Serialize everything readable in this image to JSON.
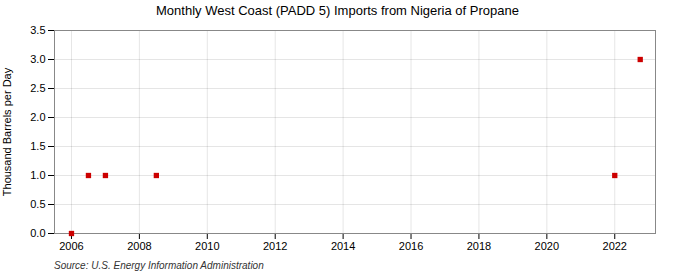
{
  "chart_data": {
    "type": "scatter",
    "title": "Monthly West Coast (PADD 5) Imports from Nigeria of Propane",
    "ylabel": "Thousand Barrels per Day",
    "source": "Source: U.S. Energy Information Administration",
    "x": [
      2006.0,
      2006.5,
      2007.0,
      2008.5,
      2022.0,
      2022.75
    ],
    "values": [
      0.0,
      1.0,
      1.0,
      1.0,
      1.0,
      3.0
    ],
    "color": "#cc0000",
    "marker": "square",
    "xlim": [
      2005.5,
      2023.2
    ],
    "ylim": [
      0.0,
      3.5
    ],
    "xticks": [
      2006,
      2008,
      2010,
      2012,
      2014,
      2016,
      2018,
      2020,
      2022
    ],
    "yticks": [
      {
        "value": 0,
        "label": "0.0"
      },
      0.5,
      {
        "value": 1,
        "label": "1.0"
      },
      1.5,
      {
        "value": 2,
        "label": "2.0"
      },
      2.5,
      {
        "value": 3,
        "label": "3.0"
      },
      3.5
    ],
    "grid": true
  }
}
